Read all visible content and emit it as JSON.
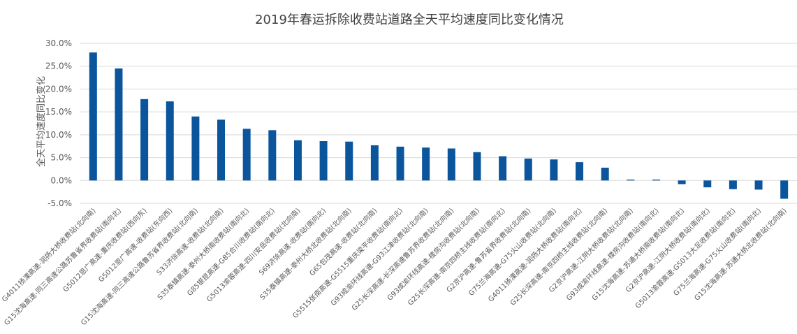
{
  "chart_data": {
    "type": "bar",
    "title": "2019年春运拆除收费站道路全天平均速度同比变化情况",
    "xlabel": "",
    "ylabel": "全天平均速度同比变化",
    "ylim": [
      -5,
      30
    ],
    "yticks": [
      -5,
      0,
      5,
      10,
      15,
      20,
      25,
      30
    ],
    "ytick_labels": [
      "-5.0%",
      "0.0%",
      "5.0%",
      "10.0%",
      "15.0%",
      "20.0%",
      "25.0%",
      "30.0%"
    ],
    "grid": true,
    "legend": "none",
    "bar_color": "#0a559c",
    "categories": [
      "G4011扬溧高速-润扬大桥收费站(北向南)",
      "G15沈海高速-同三高速公路苏鲁省界收费站(南向北)",
      "G5012恩广高速-重庆收费站(西向东)",
      "G5012恩广高速-收费站(东向西)",
      "G15沈海高速-同三高速公路鲁苏省界收费站(北向南)",
      "S33济徐高速-收费站(北向南)",
      "S35泰镇高速-泰州大桥南收费站(南向北)",
      "G85银昆高速-G85合川收费站(南向北)",
      "G5013渝蓉高速-四川安岳收费站(北向南)",
      "S69济徐高速-收费站(南向北)",
      "S35泰镇高速-泰州大桥北收费站(北向南)",
      "G65包茂高速-收费站(北向南)",
      "G5515张南高速-G5515重庆梁平收费站(南向北)",
      "G93成渝环线高速-G93江津收费站(北向南)",
      "G25长深高速-长深高速鲁苏界收费站(北向南)",
      "G93成渝环线高速-楼房沟收费站(北向南)",
      "G25长深高速-南京四桥主线收费站(南向北)",
      "G2京沪高速-鲁苏省界收费站(北向南)",
      "G75兰海高速-G75火山收费站(北向南)",
      "G4011扬溧高速-润扬大桥收费站(南向北)",
      "G25长深高速-南京四桥主线收费站(北向南)",
      "G2京沪高速-江阴大桥收费站(北向南)",
      "G93成渝环线高速-楼房沟收费站(南向北)",
      "G15沈海高速-苏通大桥南收费站(南向北)",
      "G2京沪高速-江阴大桥收费站(南向北)",
      "G5013渝蓉高速-G5013大足收费站(南向北)",
      "G75兰海高速-G75火山收费站(南向北)",
      "G15沈海高速-苏通大桥北收费站(北向南)"
    ],
    "values": [
      28.0,
      24.5,
      17.8,
      17.3,
      14.0,
      13.3,
      11.3,
      11.0,
      8.8,
      8.6,
      8.5,
      7.7,
      7.4,
      7.2,
      7.0,
      6.2,
      5.3,
      4.8,
      4.6,
      4.0,
      2.8,
      0.2,
      0.2,
      -0.8,
      -1.5,
      -1.9,
      -2.0,
      -4.0
    ]
  }
}
